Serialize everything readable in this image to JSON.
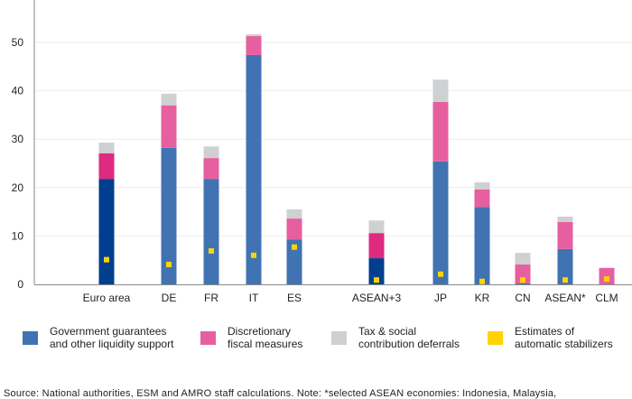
{
  "chart_data": {
    "type": "bar",
    "stacked": true,
    "title": "",
    "xlabel": "",
    "ylabel": "",
    "ylim": [
      0,
      58
    ],
    "yticks": [
      0,
      10,
      20,
      30,
      40,
      50
    ],
    "grid": true,
    "legend_position": "bottom",
    "categories": [
      "Euro area",
      "DE",
      "FR",
      "IT",
      "ES",
      "ASEAN+3",
      "JP",
      "KR",
      "CN",
      "ASEAN*",
      "CLM"
    ],
    "aggregate_categories": [
      "Euro area",
      "ASEAN+3"
    ],
    "series": [
      {
        "name": "Government guarantees\nand other liquidity support",
        "color": "#4173b3",
        "aggregate_color": "#003f8f",
        "values": [
          21.8,
          28.2,
          21.8,
          47.4,
          9.3,
          5.4,
          25.4,
          16.0,
          0.2,
          7.3,
          0.0
        ]
      },
      {
        "name": "Discretionary\nfiscal measures",
        "color": "#e65f9f",
        "aggregate_color": "#de2a7f",
        "values": [
          5.3,
          8.8,
          4.3,
          3.9,
          4.3,
          5.2,
          12.3,
          3.6,
          3.9,
          5.6,
          3.4
        ]
      },
      {
        "name": "Tax & social\ncontribution deferrals",
        "color": "#cfd0d2",
        "aggregate_color": "#cfd0d2",
        "values": [
          2.2,
          2.4,
          2.4,
          0.4,
          1.9,
          2.6,
          4.6,
          1.5,
          2.4,
          1.1,
          0.0
        ]
      }
    ],
    "markers": {
      "name": "Estimates of\nautomatic stabilizers",
      "color": "#ffd400",
      "values": [
        5.1,
        4.1,
        6.9,
        6.0,
        7.7,
        0.9,
        2.1,
        0.6,
        0.9,
        0.9,
        1.1
      ]
    }
  },
  "legend": [
    {
      "label": "Government guarantees\nand other liquidity support",
      "color": "#4173b3"
    },
    {
      "label": "Discretionary\nfiscal measures",
      "color": "#e65f9f"
    },
    {
      "label": "Tax & social\ncontribution deferrals",
      "color": "#cfd0d2"
    },
    {
      "label": "Estimates of\nautomatic stabilizers",
      "color": "#ffd400"
    }
  ],
  "source": "Source: National authorities, ESM and AMRO staff calculations. Note: *selected ASEAN economies: Indonesia, Malaysia,"
}
